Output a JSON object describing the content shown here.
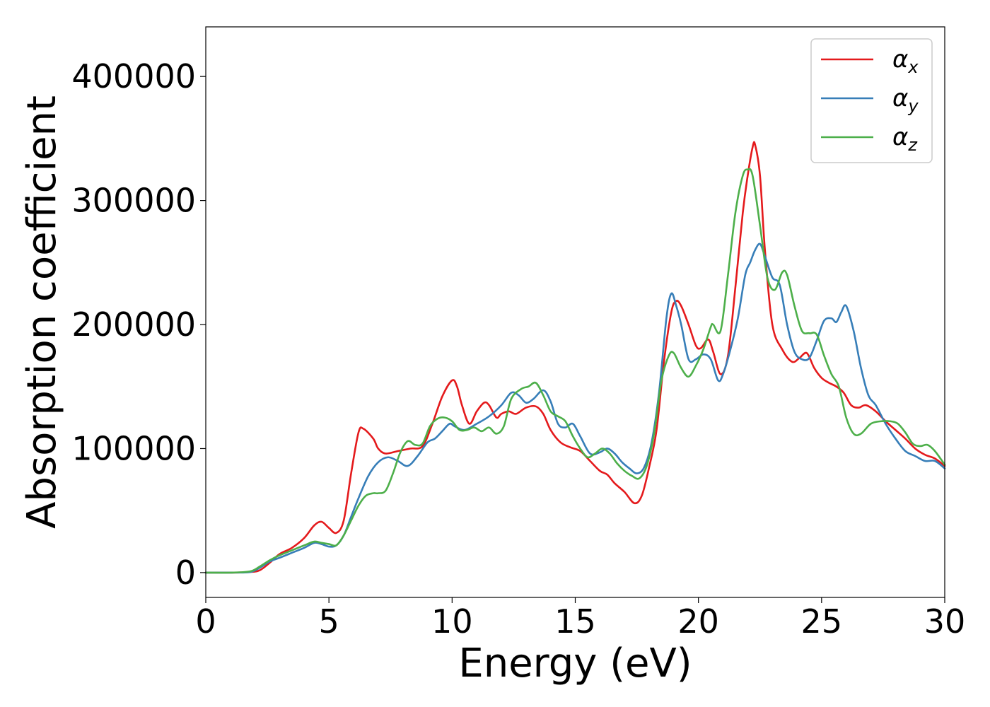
{
  "chart_data": {
    "type": "line",
    "title": "",
    "xlabel": "Energy (eV)",
    "ylabel": "Absorption coefficient",
    "xlim": [
      0,
      30
    ],
    "ylim": [
      -20000,
      440000
    ],
    "xticks": [
      0,
      5,
      10,
      15,
      20,
      25,
      30
    ],
    "xtick_labels": [
      "0",
      "5",
      "10",
      "15",
      "20",
      "25",
      "30"
    ],
    "yticks": [
      0,
      100000,
      200000,
      300000,
      400000
    ],
    "ytick_labels": [
      "0",
      "100000",
      "200000",
      "300000",
      "400000"
    ],
    "grid": false,
    "legend_position": "top-right",
    "series": [
      {
        "name": "αx",
        "legend_symbol": "α",
        "legend_subscript": "x",
        "color": "#e41a1c",
        "x": [
          0,
          1,
          1.8,
          2.2,
          2.6,
          3,
          3.5,
          4,
          4.4,
          4.7,
          5.0,
          5.3,
          5.6,
          5.9,
          6.2,
          6.4,
          6.8,
          7.0,
          7.3,
          7.8,
          8.3,
          8.8,
          9.2,
          9.6,
          10.0,
          10.2,
          10.4,
          10.7,
          11.0,
          11.3,
          11.5,
          11.8,
          12.0,
          12.3,
          12.6,
          13.0,
          13.4,
          13.7,
          14.0,
          14.4,
          14.8,
          15.2,
          15.6,
          16.0,
          16.3,
          16.6,
          17.0,
          17.4,
          17.7,
          18.0,
          18.3,
          18.6,
          18.9,
          19.1,
          19.3,
          19.6,
          19.9,
          20.1,
          20.4,
          20.6,
          20.9,
          21.2,
          21.5,
          21.8,
          22.0,
          22.2,
          22.3,
          22.5,
          22.7,
          23.0,
          23.4,
          23.8,
          24.1,
          24.4,
          24.7,
          25.0,
          25.3,
          25.6,
          25.9,
          26.2,
          26.5,
          26.8,
          27.2,
          27.6,
          28.0,
          28.4,
          28.8,
          29.2,
          29.6,
          30.0
        ],
        "values": [
          0,
          0,
          500,
          2000,
          8000,
          15000,
          20000,
          28000,
          38000,
          41000,
          36000,
          32000,
          42000,
          80000,
          113000,
          116000,
          108000,
          100000,
          96000,
          98000,
          100000,
          102000,
          120000,
          142000,
          155000,
          150000,
          135000,
          120000,
          130000,
          137000,
          135000,
          125000,
          128000,
          130000,
          128000,
          133000,
          134000,
          128000,
          115000,
          105000,
          101000,
          98000,
          90000,
          82000,
          79000,
          72000,
          65000,
          56000,
          62000,
          85000,
          115000,
          170000,
          210000,
          219000,
          215000,
          200000,
          183000,
          181000,
          188000,
          178000,
          160000,
          175000,
          230000,
          290000,
          320000,
          343000,
          345000,
          320000,
          260000,
          200000,
          180000,
          170000,
          173000,
          177000,
          165000,
          157000,
          153000,
          150000,
          145000,
          135000,
          133000,
          135000,
          130000,
          122000,
          115000,
          108000,
          100000,
          95000,
          92000,
          86000
        ]
      },
      {
        "name": "αy",
        "legend_symbol": "α",
        "legend_subscript": "y",
        "color": "#377eb8",
        "x": [
          0,
          1,
          1.8,
          2.2,
          2.6,
          3,
          3.5,
          4,
          4.4,
          4.7,
          5.0,
          5.3,
          5.6,
          5.9,
          6.2,
          6.6,
          7.0,
          7.4,
          7.8,
          8.2,
          8.6,
          9.0,
          9.3,
          9.6,
          9.9,
          10.1,
          10.5,
          11.0,
          11.5,
          12.0,
          12.4,
          12.7,
          13.0,
          13.3,
          13.7,
          14.0,
          14.3,
          14.6,
          14.9,
          15.2,
          15.6,
          16.0,
          16.3,
          16.6,
          16.9,
          17.2,
          17.5,
          17.8,
          18.1,
          18.4,
          18.7,
          18.9,
          19.1,
          19.3,
          19.6,
          19.9,
          20.2,
          20.5,
          20.8,
          21.0,
          21.3,
          21.6,
          21.9,
          22.1,
          22.3,
          22.5,
          22.7,
          23.0,
          23.3,
          23.6,
          23.9,
          24.2,
          24.5,
          24.8,
          25.1,
          25.4,
          25.6,
          25.8,
          26.0,
          26.3,
          26.6,
          26.9,
          27.2,
          27.6,
          28.0,
          28.4,
          28.8,
          29.2,
          29.6,
          30.0
        ],
        "values": [
          0,
          0,
          500,
          4000,
          9000,
          12000,
          16000,
          20000,
          24000,
          23000,
          21000,
          22000,
          30000,
          45000,
          60000,
          78000,
          89000,
          93000,
          90000,
          86000,
          94000,
          105000,
          108000,
          114000,
          120000,
          118000,
          115000,
          120000,
          126000,
          135000,
          145000,
          143000,
          137000,
          140000,
          147000,
          138000,
          120000,
          117000,
          120000,
          110000,
          96000,
          97000,
          100000,
          96000,
          89000,
          84000,
          80000,
          85000,
          105000,
          145000,
          205000,
          225000,
          215000,
          200000,
          172000,
          172000,
          176000,
          172000,
          155000,
          160000,
          180000,
          205000,
          240000,
          250000,
          260000,
          265000,
          255000,
          238000,
          232000,
          200000,
          178000,
          172000,
          173000,
          187000,
          203000,
          205000,
          202000,
          210000,
          215000,
          195000,
          165000,
          143000,
          135000,
          120000,
          108000,
          98000,
          94000,
          90000,
          90000,
          84000
        ]
      },
      {
        "name": "αz",
        "legend_symbol": "α",
        "legend_subscript": "z",
        "color": "#4daf4a",
        "x": [
          0,
          1,
          1.8,
          2.2,
          2.6,
          3,
          3.5,
          4,
          4.4,
          4.7,
          5.0,
          5.3,
          5.6,
          5.9,
          6.2,
          6.5,
          6.8,
          7.0,
          7.3,
          7.6,
          7.9,
          8.2,
          8.5,
          8.8,
          9.1,
          9.4,
          9.7,
          10.0,
          10.3,
          10.6,
          10.9,
          11.2,
          11.5,
          11.8,
          12.1,
          12.4,
          12.8,
          13.1,
          13.4,
          13.7,
          14.0,
          14.3,
          14.6,
          14.9,
          15.2,
          15.5,
          15.8,
          16.1,
          16.4,
          16.7,
          17.0,
          17.3,
          17.6,
          17.9,
          18.2,
          18.5,
          18.8,
          19.0,
          19.3,
          19.6,
          19.9,
          20.2,
          20.5,
          20.6,
          20.9,
          21.2,
          21.5,
          21.8,
          22.0,
          22.2,
          22.5,
          22.8,
          23.1,
          23.4,
          23.6,
          23.9,
          24.2,
          24.5,
          24.8,
          25.1,
          25.4,
          25.7,
          26.0,
          26.3,
          26.6,
          27.0,
          27.4,
          27.8,
          28.1,
          28.4,
          28.7,
          29.0,
          29.3,
          29.6,
          30.0
        ],
        "values": [
          0,
          0,
          1000,
          5000,
          10000,
          14000,
          18000,
          22000,
          25000,
          24000,
          23000,
          22000,
          30000,
          42000,
          54000,
          62000,
          64000,
          64000,
          66000,
          80000,
          97000,
          106000,
          103000,
          104000,
          118000,
          124000,
          125000,
          122000,
          115000,
          115000,
          117000,
          114000,
          117000,
          112000,
          118000,
          140000,
          148000,
          150000,
          153000,
          143000,
          130000,
          126000,
          122000,
          110000,
          100000,
          93000,
          96000,
          100000,
          96000,
          88000,
          82000,
          78000,
          76000,
          86000,
          112000,
          155000,
          175000,
          177000,
          165000,
          158000,
          167000,
          180000,
          198000,
          200000,
          195000,
          240000,
          290000,
          320000,
          325000,
          320000,
          280000,
          238000,
          228000,
          242000,
          240000,
          215000,
          195000,
          193000,
          192000,
          175000,
          160000,
          150000,
          125000,
          112000,
          112000,
          120000,
          122000,
          122000,
          120000,
          113000,
          104000,
          102000,
          103000,
          98000,
          87000
        ]
      }
    ]
  }
}
